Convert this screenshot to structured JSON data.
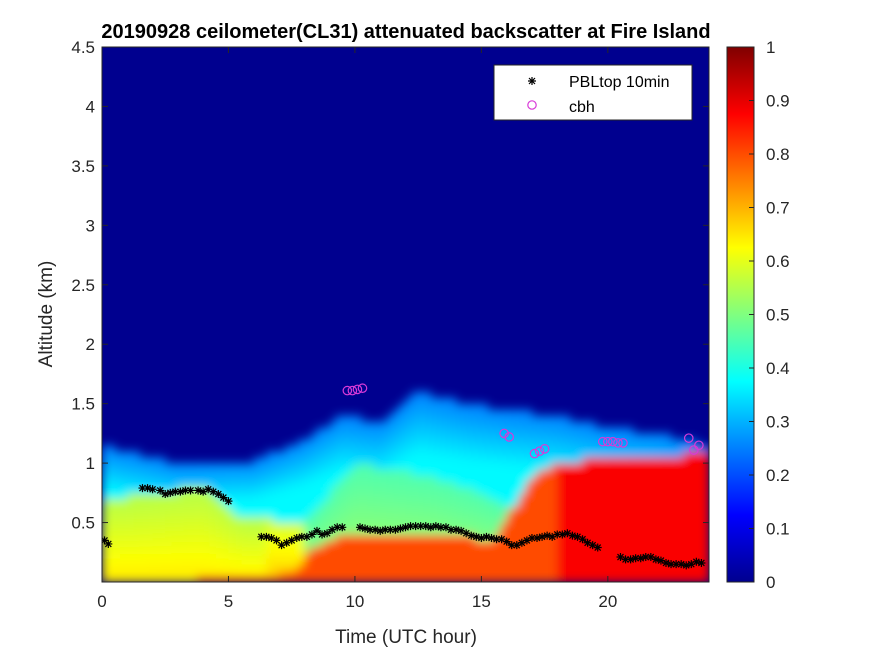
{
  "chart_data": {
    "type": "heatmap",
    "title": "20190928 ceilometer(CL31) attenuated backscatter at Fire Island",
    "xlabel": "Time (UTC hour)",
    "ylabel": "Altitude (km)",
    "xlim": [
      0,
      24
    ],
    "ylim": [
      0,
      4.5
    ],
    "xticks": [
      0,
      5,
      10,
      15,
      20
    ],
    "yticks": [
      0.5,
      1,
      1.5,
      2,
      2.5,
      3,
      3.5,
      4,
      4.5
    ],
    "colorbar": {
      "min": 0,
      "max": 1,
      "ticks": [
        0,
        0.1,
        0.2,
        0.3,
        0.4,
        0.5,
        0.6,
        0.7,
        0.8,
        0.9,
        1
      ],
      "colormap": "jet"
    },
    "legend": {
      "placement": "top-right",
      "entries": [
        "PBLtop 10min",
        "cbh"
      ]
    },
    "series": [
      {
        "name": "PBLtop 10min",
        "marker": "asterisk",
        "color": "#000000",
        "x": [
          0.1,
          0.25,
          1.6,
          1.8,
          2.0,
          2.3,
          2.5,
          2.7,
          2.9,
          3.1,
          3.3,
          3.5,
          3.8,
          4.0,
          4.2,
          4.4,
          4.6,
          4.8,
          5.0,
          6.3,
          6.5,
          6.7,
          6.9,
          7.1,
          7.3,
          7.5,
          7.7,
          7.9,
          8.1,
          8.3,
          8.5,
          8.7,
          8.9,
          9.1,
          9.3,
          9.5,
          10.2,
          10.4,
          10.6,
          10.8,
          11.0,
          11.2,
          11.4,
          11.6,
          11.8,
          12.0,
          12.2,
          12.4,
          12.6,
          12.8,
          13.0,
          13.2,
          13.4,
          13.6,
          13.8,
          14.0,
          14.2,
          14.4,
          14.6,
          14.8,
          15.0,
          15.2,
          15.4,
          15.6,
          15.8,
          16.0,
          16.2,
          16.4,
          16.6,
          16.8,
          17.0,
          17.2,
          17.4,
          17.6,
          17.8,
          18.0,
          18.2,
          18.4,
          18.6,
          18.8,
          19.0,
          19.2,
          19.4,
          19.6,
          20.5,
          20.7,
          20.9,
          21.1,
          21.3,
          21.5,
          21.7,
          21.9,
          22.1,
          22.3,
          22.5,
          22.7,
          22.9,
          23.1,
          23.3,
          23.5,
          23.7
        ],
        "y": [
          0.35,
          0.32,
          0.79,
          0.79,
          0.78,
          0.77,
          0.74,
          0.75,
          0.76,
          0.76,
          0.77,
          0.77,
          0.77,
          0.76,
          0.78,
          0.76,
          0.74,
          0.71,
          0.68,
          0.38,
          0.38,
          0.37,
          0.35,
          0.31,
          0.33,
          0.35,
          0.37,
          0.38,
          0.38,
          0.4,
          0.43,
          0.4,
          0.41,
          0.44,
          0.46,
          0.46,
          0.46,
          0.45,
          0.44,
          0.44,
          0.43,
          0.44,
          0.44,
          0.44,
          0.45,
          0.46,
          0.47,
          0.47,
          0.47,
          0.47,
          0.46,
          0.47,
          0.46,
          0.46,
          0.44,
          0.44,
          0.43,
          0.41,
          0.39,
          0.38,
          0.37,
          0.38,
          0.37,
          0.36,
          0.36,
          0.34,
          0.31,
          0.31,
          0.33,
          0.35,
          0.37,
          0.37,
          0.38,
          0.39,
          0.38,
          0.4,
          0.4,
          0.41,
          0.39,
          0.38,
          0.36,
          0.33,
          0.31,
          0.29,
          0.21,
          0.19,
          0.19,
          0.2,
          0.2,
          0.21,
          0.21,
          0.19,
          0.18,
          0.16,
          0.15,
          0.15,
          0.15,
          0.14,
          0.15,
          0.17,
          0.16
        ]
      },
      {
        "name": "cbh",
        "marker": "circle",
        "color": "#d83ad8",
        "x": [
          9.7,
          9.9,
          10.1,
          10.3,
          15.9,
          16.1,
          17.1,
          17.3,
          17.5,
          19.8,
          20.0,
          20.2,
          20.4,
          20.6,
          23.2,
          23.4,
          23.6
        ],
        "y": [
          1.61,
          1.61,
          1.62,
          1.63,
          1.25,
          1.22,
          1.08,
          1.1,
          1.12,
          1.18,
          1.18,
          1.18,
          1.17,
          1.17,
          1.21,
          1.11,
          1.15
        ]
      }
    ]
  }
}
